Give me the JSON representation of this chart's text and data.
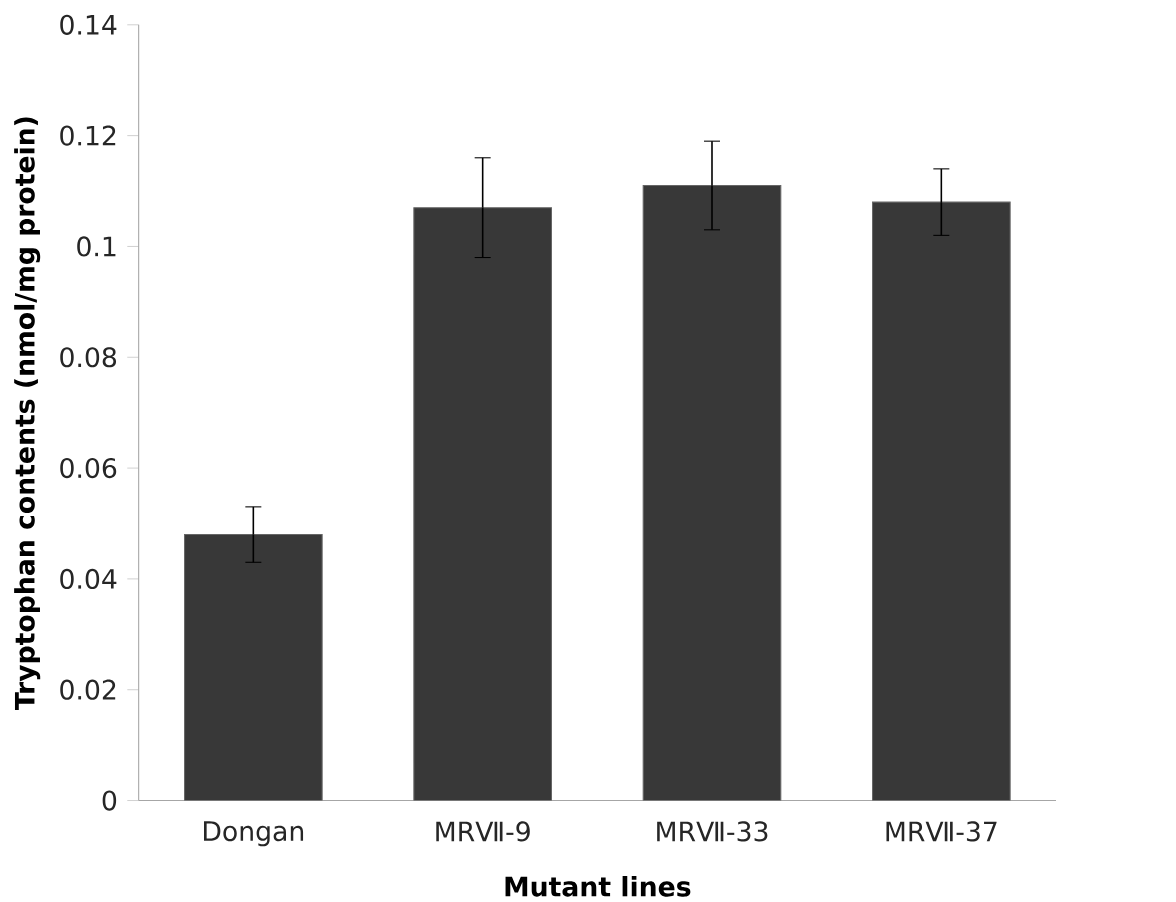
{
  "chart_data": {
    "type": "bar",
    "xlabel": "Mutant lines",
    "ylabel": "Tryptophan contents (nmol/mg protein)",
    "categories": [
      "Dongan",
      "MRⅦ-9",
      "MRⅦ-33",
      "MRⅦ-37"
    ],
    "values": [
      0.048,
      0.107,
      0.111,
      0.108
    ],
    "errors": [
      0.005,
      0.009,
      0.008,
      0.006
    ],
    "color": "#383838",
    "ylim": [
      0,
      0.14
    ],
    "yticks": [
      0,
      0.02,
      0.04,
      0.06,
      0.08,
      0.1,
      0.12,
      0.14
    ],
    "grid": false
  }
}
